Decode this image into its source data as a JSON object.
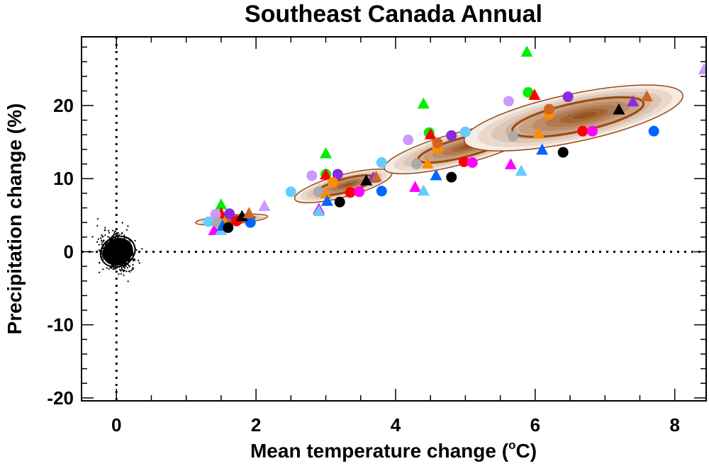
{
  "chart_data": {
    "type": "scatter",
    "title": "Southeast Canada Annual",
    "xlabel": "Mean temperature change (",
    "xlabel_sup": "o",
    "xlabel_end": "C)",
    "ylabel": "Precipitation change (%)",
    "xlim": [
      -0.5,
      8.45
    ],
    "ylim": [
      -20.4,
      29.4
    ],
    "x_ticks": [
      0,
      2,
      4,
      6,
      8
    ],
    "x_tick_labels": [
      "0",
      "2",
      "4",
      "6",
      "8"
    ],
    "x_minor_step": 0.5,
    "y_ticks": [
      -20,
      -10,
      0,
      10,
      20
    ],
    "y_tick_labels": [
      "-20",
      "-10",
      "0",
      "10",
      "20"
    ],
    "y_minor_step": 2,
    "grid": false,
    "reference_lines": [
      {
        "orientation": "vertical",
        "value": 0,
        "style": "dotted"
      },
      {
        "orientation": "horizontal",
        "value": 0,
        "style": "dotted"
      }
    ],
    "colors": {
      "contour_line": "#9a4a12",
      "density_light": "#f4ece6",
      "density_dark": "#9a531c"
    },
    "natural_variability": {
      "center": [
        0.02,
        0.0
      ],
      "sd": [
        0.1,
        1.3
      ]
    },
    "density_ellipses": [
      {
        "center": [
          1.65,
          4.4
        ],
        "outer_semi": [
          0.52,
          1.45
        ],
        "rotation_deg": -5
      },
      {
        "center": [
          3.25,
          9.0
        ],
        "outer_semi": [
          0.72,
          3.6
        ],
        "rotation_deg": -15
      },
      {
        "center": [
          4.95,
          14.2
        ],
        "outer_semi": [
          1.15,
          5.2
        ],
        "rotation_deg": -15
      },
      {
        "center": [
          6.55,
          18.3
        ],
        "outer_semi": [
          1.6,
          7.8
        ],
        "rotation_deg": -12
      }
    ],
    "series": [
      {
        "name": "green",
        "color": "#00ee00",
        "points": [
          {
            "x": 1.5,
            "y": 6.4,
            "m": "tri"
          },
          {
            "x": 3.0,
            "y": 13.4,
            "m": "tri"
          },
          {
            "x": 3.0,
            "y": 10.6,
            "m": "circ"
          },
          {
            "x": 4.4,
            "y": 20.2,
            "m": "tri"
          },
          {
            "x": 4.48,
            "y": 16.3,
            "m": "circ"
          },
          {
            "x": 5.88,
            "y": 27.3,
            "m": "tri"
          },
          {
            "x": 5.9,
            "y": 21.8,
            "m": "circ"
          }
        ]
      },
      {
        "name": "red",
        "color": "#ff0000",
        "points": [
          {
            "x": 1.5,
            "y": 5.2,
            "m": "tri"
          },
          {
            "x": 1.72,
            "y": 4.2,
            "m": "circ"
          },
          {
            "x": 3.0,
            "y": 10.5,
            "m": "tri"
          },
          {
            "x": 3.35,
            "y": 8.1,
            "m": "circ"
          },
          {
            "x": 4.5,
            "y": 16.0,
            "m": "tri"
          },
          {
            "x": 4.98,
            "y": 12.3,
            "m": "circ"
          },
          {
            "x": 5.99,
            "y": 21.4,
            "m": "tri"
          },
          {
            "x": 6.68,
            "y": 16.5,
            "m": "circ"
          }
        ]
      },
      {
        "name": "magenta",
        "color": "#ff00ff",
        "points": [
          {
            "x": 1.4,
            "y": 2.9,
            "m": "tri"
          },
          {
            "x": 3.48,
            "y": 8.2,
            "m": "circ"
          },
          {
            "x": 2.9,
            "y": 5.8,
            "m": "tri"
          },
          {
            "x": 4.28,
            "y": 8.8,
            "m": "tri"
          },
          {
            "x": 5.1,
            "y": 12.2,
            "m": "circ"
          },
          {
            "x": 5.65,
            "y": 11.9,
            "m": "tri"
          },
          {
            "x": 6.82,
            "y": 16.5,
            "m": "circ"
          }
        ]
      },
      {
        "name": "purple",
        "color": "#8a2be2",
        "points": [
          {
            "x": 1.62,
            "y": 5.2,
            "m": "circ"
          },
          {
            "x": 3.17,
            "y": 10.6,
            "m": "circ"
          },
          {
            "x": 3.68,
            "y": 10.1,
            "m": "tri"
          },
          {
            "x": 4.8,
            "y": 15.9,
            "m": "circ"
          },
          {
            "x": 6.47,
            "y": 21.2,
            "m": "circ"
          },
          {
            "x": 7.4,
            "y": 20.5,
            "m": "tri"
          }
        ]
      },
      {
        "name": "lilac",
        "color": "#cc99ff",
        "points": [
          {
            "x": 1.42,
            "y": 5.1,
            "m": "circ"
          },
          {
            "x": 2.12,
            "y": 6.2,
            "m": "tri"
          },
          {
            "x": 2.8,
            "y": 10.4,
            "m": "circ"
          },
          {
            "x": 4.18,
            "y": 15.3,
            "m": "circ"
          },
          {
            "x": 5.62,
            "y": 20.6,
            "m": "circ"
          },
          {
            "x": 8.42,
            "y": 24.9,
            "m": "tri"
          }
        ]
      },
      {
        "name": "sky-blue",
        "color": "#66ccff",
        "points": [
          {
            "x": 1.32,
            "y": 4.1,
            "m": "circ"
          },
          {
            "x": 1.5,
            "y": 2.9,
            "m": "tri"
          },
          {
            "x": 2.5,
            "y": 8.2,
            "m": "circ"
          },
          {
            "x": 2.9,
            "y": 5.5,
            "m": "tri"
          },
          {
            "x": 3.8,
            "y": 12.2,
            "m": "circ"
          },
          {
            "x": 4.4,
            "y": 8.3,
            "m": "tri"
          },
          {
            "x": 5.0,
            "y": 16.4,
            "m": "circ"
          },
          {
            "x": 5.8,
            "y": 11.0,
            "m": "tri"
          }
        ]
      },
      {
        "name": "gray",
        "color": "#aaaaaa",
        "points": [
          {
            "x": 1.45,
            "y": 4.0,
            "m": "circ"
          },
          {
            "x": 2.9,
            "y": 8.2,
            "m": "circ"
          },
          {
            "x": 4.3,
            "y": 12.0,
            "m": "circ"
          },
          {
            "x": 5.68,
            "y": 15.8,
            "m": "circ"
          }
        ]
      },
      {
        "name": "orange",
        "color": "#ff8c00",
        "points": [
          {
            "x": 1.55,
            "y": 4.0,
            "m": "tri"
          },
          {
            "x": 3.1,
            "y": 9.5,
            "m": "circ"
          },
          {
            "x": 3.0,
            "y": 7.9,
            "m": "tri"
          },
          {
            "x": 4.6,
            "y": 14.1,
            "m": "circ"
          },
          {
            "x": 4.46,
            "y": 12.0,
            "m": "tri"
          },
          {
            "x": 6.2,
            "y": 18.8,
            "m": "circ"
          },
          {
            "x": 6.05,
            "y": 16.1,
            "m": "tri"
          }
        ]
      },
      {
        "name": "blue",
        "color": "#0066ff",
        "points": [
          {
            "x": 1.52,
            "y": 3.5,
            "m": "tri"
          },
          {
            "x": 1.92,
            "y": 4.0,
            "m": "circ"
          },
          {
            "x": 3.02,
            "y": 6.9,
            "m": "tri"
          },
          {
            "x": 3.8,
            "y": 8.3,
            "m": "circ"
          },
          {
            "x": 4.58,
            "y": 10.4,
            "m": "tri"
          },
          {
            "x": 6.1,
            "y": 13.9,
            "m": "tri"
          },
          {
            "x": 7.7,
            "y": 16.5,
            "m": "circ"
          }
        ]
      },
      {
        "name": "black",
        "color": "#000000",
        "points": [
          {
            "x": 1.6,
            "y": 3.3,
            "m": "circ"
          },
          {
            "x": 1.8,
            "y": 4.8,
            "m": "tri"
          },
          {
            "x": 3.2,
            "y": 6.8,
            "m": "circ"
          },
          {
            "x": 3.58,
            "y": 9.7,
            "m": "tri"
          },
          {
            "x": 4.8,
            "y": 10.2,
            "m": "circ"
          },
          {
            "x": 6.4,
            "y": 13.6,
            "m": "circ"
          },
          {
            "x": 7.2,
            "y": 19.4,
            "m": "tri"
          }
        ]
      },
      {
        "name": "brown",
        "color": "#cc6622",
        "points": [
          {
            "x": 1.9,
            "y": 5.2,
            "m": "tri"
          },
          {
            "x": 3.72,
            "y": 10.2,
            "m": "tri"
          },
          {
            "x": 4.6,
            "y": 14.9,
            "m": "circ"
          },
          {
            "x": 6.2,
            "y": 19.5,
            "m": "circ"
          },
          {
            "x": 7.6,
            "y": 21.2,
            "m": "tri"
          }
        ]
      }
    ]
  }
}
